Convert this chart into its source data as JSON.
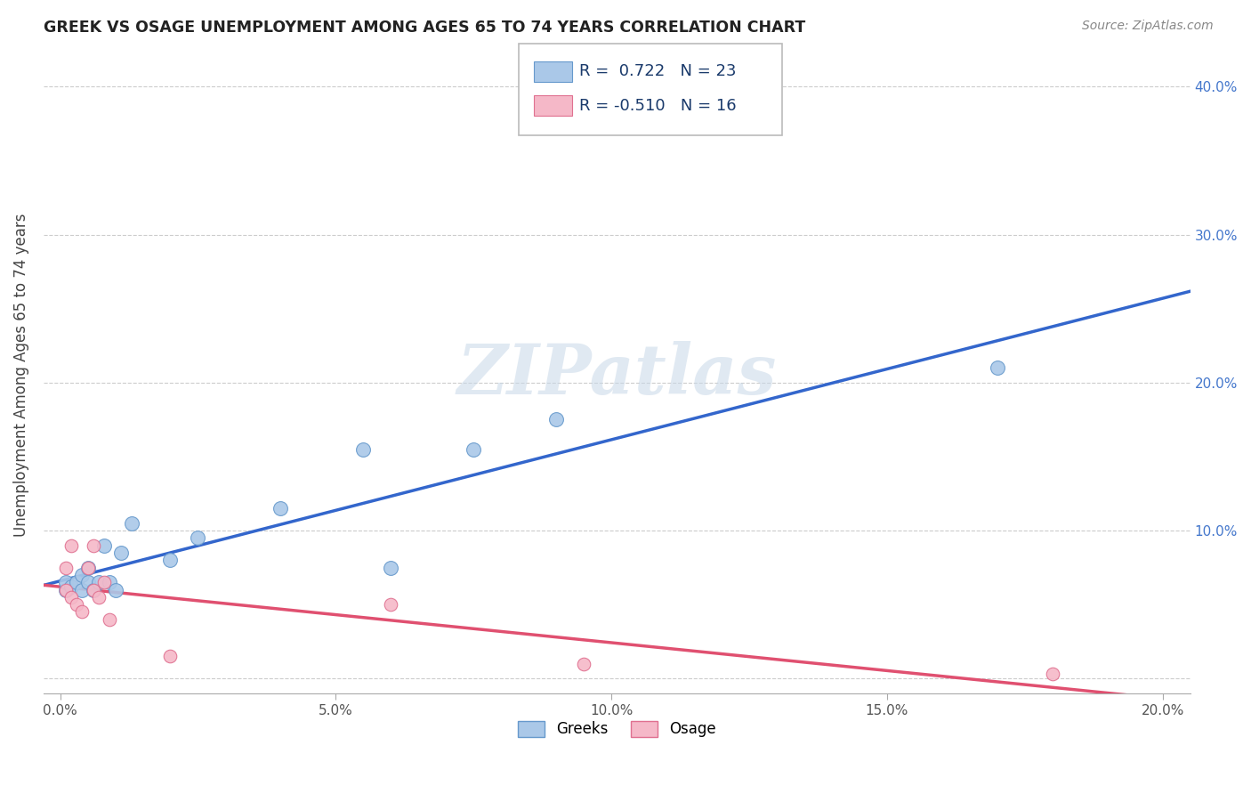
{
  "title": "GREEK VS OSAGE UNEMPLOYMENT AMONG AGES 65 TO 74 YEARS CORRELATION CHART",
  "source": "Source: ZipAtlas.com",
  "ylabel": "Unemployment Among Ages 65 to 74 years",
  "xlim": [
    -0.003,
    0.205
  ],
  "ylim": [
    -0.01,
    0.42
  ],
  "xticks": [
    0.0,
    0.05,
    0.1,
    0.15,
    0.2
  ],
  "yticks": [
    0.0,
    0.1,
    0.2,
    0.3,
    0.4
  ],
  "xticklabels": [
    "0.0%",
    "5.0%",
    "10.0%",
    "15.0%",
    "20.0%"
  ],
  "yticklabels": [
    "",
    "10.0%",
    "20.0%",
    "30.0%",
    "40.0%"
  ],
  "background_color": "#ffffff",
  "grid_color": "#cccccc",
  "title_color": "#222222",
  "watermark_text": "ZIPatlas",
  "greeks_color": "#aac8e8",
  "greeks_edge_color": "#6699cc",
  "osage_color": "#f5b8c8",
  "osage_edge_color": "#e07090",
  "greeks_line_color": "#3366cc",
  "osage_line_color": "#e05070",
  "legend_R1": "0.722",
  "legend_N1": "23",
  "legend_R2": "-0.510",
  "legend_N2": "16",
  "greeks_x": [
    0.001,
    0.001,
    0.002,
    0.003,
    0.004,
    0.004,
    0.005,
    0.005,
    0.006,
    0.007,
    0.008,
    0.009,
    0.01,
    0.011,
    0.013,
    0.02,
    0.025,
    0.04,
    0.055,
    0.06,
    0.075,
    0.09,
    0.17
  ],
  "greeks_y": [
    0.06,
    0.065,
    0.062,
    0.065,
    0.06,
    0.07,
    0.065,
    0.075,
    0.06,
    0.065,
    0.09,
    0.065,
    0.06,
    0.085,
    0.105,
    0.08,
    0.095,
    0.115,
    0.155,
    0.075,
    0.155,
    0.175,
    0.21
  ],
  "osage_x": [
    0.001,
    0.001,
    0.002,
    0.002,
    0.003,
    0.004,
    0.005,
    0.006,
    0.006,
    0.007,
    0.008,
    0.009,
    0.02,
    0.06,
    0.095,
    0.18
  ],
  "osage_y": [
    0.075,
    0.06,
    0.055,
    0.09,
    0.05,
    0.045,
    0.075,
    0.06,
    0.09,
    0.055,
    0.065,
    0.04,
    0.015,
    0.05,
    0.01,
    0.003
  ],
  "greeks_size": 130,
  "osage_size": 110,
  "ytick_color": "#4477cc",
  "xtick_color": "#555555"
}
